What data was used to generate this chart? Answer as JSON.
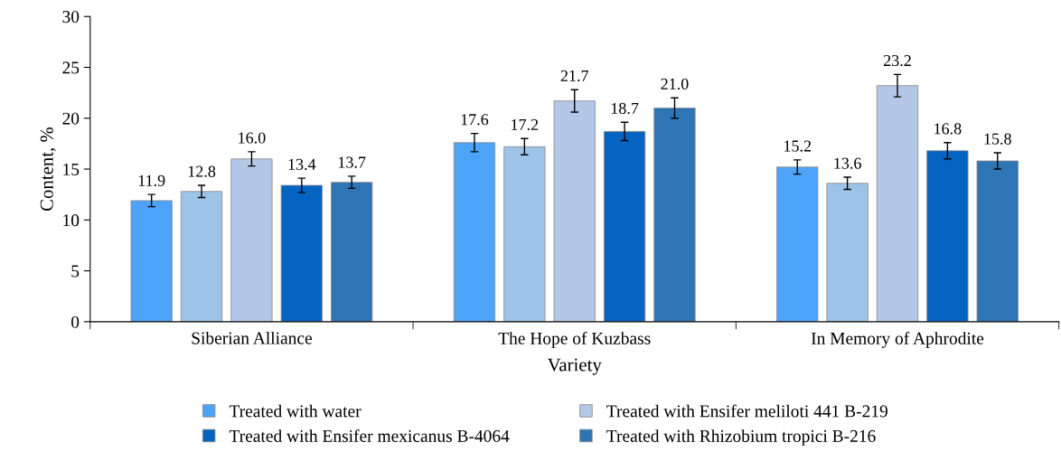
{
  "chart_data": {
    "type": "bar",
    "xlabel": "Variety",
    "ylabel": "Content, %",
    "categories": [
      "Siberian Alliance",
      "The Hope of Kuzbass",
      "In Memory of Aphrodite"
    ],
    "series": [
      {
        "name": "Treated with water",
        "color": "#4da3f7",
        "values": [
          11.9,
          17.6,
          15.2
        ],
        "errors": [
          0.6,
          0.9,
          0.7
        ],
        "value_labels": [
          "11.9",
          "17.6",
          "15.2"
        ]
      },
      {
        "color": "#9dc3e6",
        "values": [
          12.8,
          17.2,
          13.6
        ],
        "errors": [
          0.6,
          0.8,
          0.6
        ],
        "value_labels": [
          "12.8",
          "17.2",
          "13.6"
        ]
      },
      {
        "name": "Treated with Ensifer meliloti 441 B-219",
        "color": "#b4c7e7",
        "values": [
          16.0,
          21.7,
          23.2
        ],
        "errors": [
          0.7,
          1.1,
          1.1
        ],
        "value_labels": [
          "16.0",
          "21.7",
          "23.2"
        ]
      },
      {
        "name": "Treated with Ensifer mexicanus B-4064",
        "color": "#0563c1",
        "values": [
          13.4,
          18.7,
          16.8
        ],
        "errors": [
          0.7,
          0.9,
          0.8
        ],
        "value_labels": [
          "13.4",
          "18.7",
          "16.8"
        ]
      },
      {
        "name": "Treated with Rhizobium tropici B-216",
        "color": "#2e75b6",
        "values": [
          13.7,
          21.0,
          15.8
        ],
        "errors": [
          0.6,
          1.0,
          0.8
        ],
        "value_labels": [
          "13.7",
          "21.0",
          "15.8"
        ]
      }
    ],
    "ylim": [
      0,
      30
    ],
    "yticks": [
      0,
      5,
      10,
      15,
      20,
      25,
      30
    ],
    "grid": false,
    "legend": "bottom"
  }
}
